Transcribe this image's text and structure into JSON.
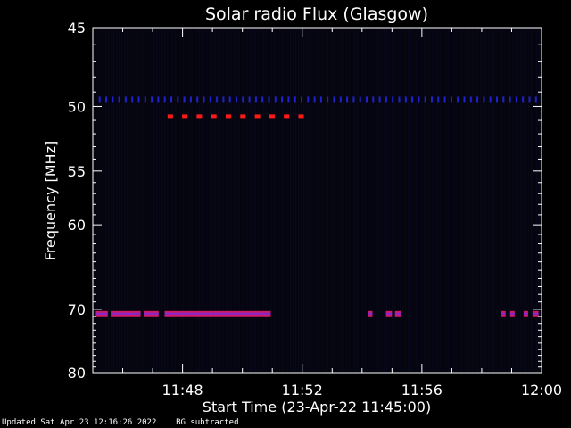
{
  "chart_data": {
    "type": "heatmap",
    "title": "Solar radio Flux (Glasgow)",
    "xlabel": "Start Time (23-Apr-22 11:45:00)",
    "ylabel": "Frequency [MHz]",
    "x_unit": "minutes after 11:45:00",
    "xlim": [
      0,
      15
    ],
    "ylim": [
      80,
      45
    ],
    "y_scale": "reciprocal",
    "x_ticks": [
      {
        "value": 3,
        "label": "11:48"
      },
      {
        "value": 7,
        "label": "11:52"
      },
      {
        "value": 11,
        "label": "11:56"
      },
      {
        "value": 15,
        "label": "12:00"
      }
    ],
    "y_ticks": [
      {
        "value": 45,
        "label": "45"
      },
      {
        "value": 50,
        "label": "50"
      },
      {
        "value": 55,
        "label": "55"
      },
      {
        "value": 60,
        "label": "60"
      },
      {
        "value": 70,
        "label": "70"
      },
      {
        "value": 80,
        "label": "80"
      }
    ],
    "background_color": "#050510",
    "channels": [
      {
        "freq": 49.5,
        "color": "#2222cc",
        "pattern": "dotted",
        "segments": [
          [
            0.2,
            15.0
          ]
        ]
      },
      {
        "freq": 50.7,
        "color": "#ff1a1a",
        "pattern": "dashed",
        "segments": [
          [
            2.5,
            7.0
          ]
        ]
      },
      {
        "freq": 70.6,
        "color": "#cc1a66",
        "pattern": "solid",
        "segments": [
          [
            0.1,
            0.5
          ],
          [
            0.6,
            1.6
          ],
          [
            1.7,
            2.2
          ],
          [
            2.4,
            5.95
          ],
          [
            9.2,
            9.35
          ],
          [
            9.8,
            10.0
          ],
          [
            10.1,
            10.3
          ],
          [
            13.65,
            13.8
          ],
          [
            13.95,
            14.1
          ],
          [
            14.4,
            14.55
          ],
          [
            14.7,
            14.9
          ]
        ]
      }
    ],
    "grid": false
  },
  "footer": {
    "updated": "Updated Sat Apr 23 12:16:26 2022",
    "note": "BG subtracted"
  }
}
